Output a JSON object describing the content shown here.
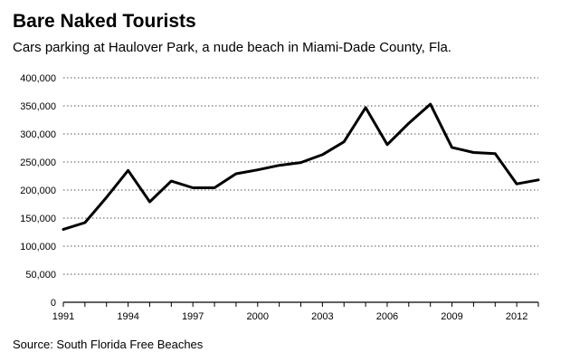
{
  "chart_data": {
    "type": "line",
    "title": "Bare Naked Tourists",
    "subtitle": "Cars parking at Haulover Park, a nude beach in Miami-Dade County, Fla.",
    "source": "Source: South Florida Free Beaches",
    "xlabel": "",
    "ylabel": "",
    "ylim": [
      0,
      400000
    ],
    "xlim": [
      1991,
      2013
    ],
    "grid": true,
    "yticks": [
      0,
      50000,
      100000,
      150000,
      200000,
      250000,
      300000,
      350000,
      400000
    ],
    "ytick_labels": [
      "0",
      "50,000",
      "100,000",
      "150,000",
      "200,000",
      "250,000",
      "300,000",
      "350,000",
      "400,000"
    ],
    "xticks": [
      1991,
      1994,
      1997,
      2000,
      2003,
      2006,
      2009,
      2012
    ],
    "xtick_labels": [
      "1991",
      "1994",
      "1997",
      "2000",
      "2003",
      "2006",
      "2009",
      "2012"
    ],
    "series": [
      {
        "name": "Cars parking",
        "color": "#000000",
        "x": [
          1991,
          1992,
          1993,
          1994,
          1995,
          1996,
          1997,
          1998,
          1999,
          2000,
          2001,
          2002,
          2003,
          2004,
          2005,
          2006,
          2007,
          2008,
          2009,
          2010,
          2011,
          2012,
          2013
        ],
        "values": [
          130000,
          142000,
          187000,
          235000,
          179000,
          216000,
          204000,
          204000,
          229000,
          236000,
          244000,
          249000,
          263000,
          286000,
          347000,
          281000,
          319000,
          353000,
          276000,
          267000,
          265000,
          211000,
          218000
        ]
      }
    ]
  }
}
